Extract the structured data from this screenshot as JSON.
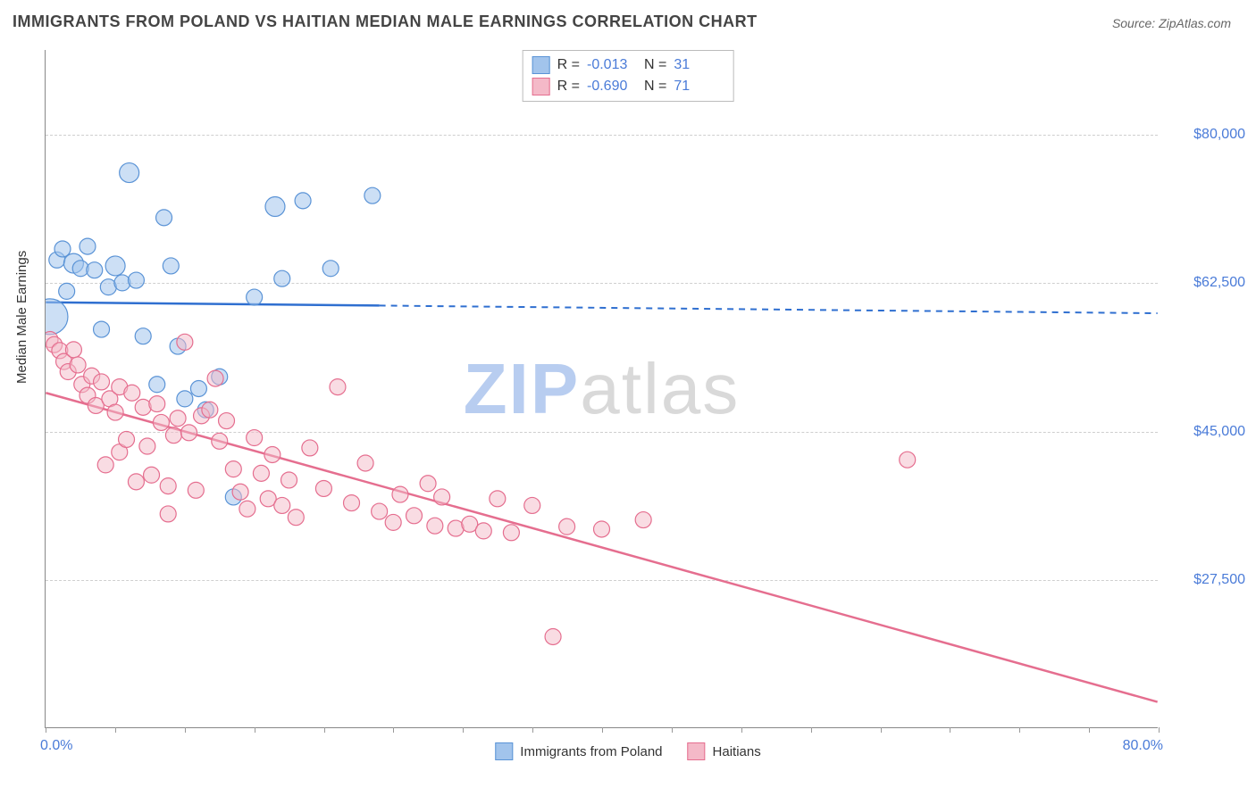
{
  "title": "IMMIGRANTS FROM POLAND VS HAITIAN MEDIAN MALE EARNINGS CORRELATION CHART",
  "source": "Source: ZipAtlas.com",
  "y_axis_label": "Median Male Earnings",
  "watermark": {
    "part1": "ZIP",
    "part2": "atlas"
  },
  "chart": {
    "type": "scatter",
    "xlim": [
      0,
      80
    ],
    "ylim": [
      10000,
      90000
    ],
    "x_tick_positions": [
      0,
      5,
      10,
      15,
      20,
      25,
      30,
      35,
      40,
      45,
      50,
      55,
      60,
      65,
      70,
      75,
      80
    ],
    "x_label_min": "0.0%",
    "x_label_max": "80.0%",
    "y_gridlines": [
      27500,
      45000,
      62500,
      80000
    ],
    "y_tick_labels": [
      "$27,500",
      "$45,000",
      "$62,500",
      "$80,000"
    ],
    "background_color": "#ffffff",
    "grid_color": "#cfcfcf",
    "axis_color": "#888888",
    "tick_label_color": "#4a7bd8",
    "title_fontsize": 18,
    "label_fontsize": 15,
    "tick_fontsize": 16
  },
  "series": [
    {
      "name": "Immigrants from Poland",
      "marker_fill": "#a2c4ec",
      "marker_stroke": "#5a93d6",
      "fill_opacity": 0.55,
      "marker_radius": 9,
      "line_color": "#2f6fd0",
      "line_width": 2.5,
      "R": "-0.013",
      "N": "31",
      "trend": {
        "x1": 0,
        "y1": 60200,
        "x2": 80,
        "y2": 58900,
        "solid_until_x": 24
      },
      "points": [
        {
          "x": 0.3,
          "y": 58500,
          "r": 20
        },
        {
          "x": 0.8,
          "y": 65200,
          "r": 9
        },
        {
          "x": 1.2,
          "y": 66500,
          "r": 9
        },
        {
          "x": 1.5,
          "y": 61500,
          "r": 9
        },
        {
          "x": 2.0,
          "y": 64800,
          "r": 11
        },
        {
          "x": 2.5,
          "y": 64200,
          "r": 9
        },
        {
          "x": 3.0,
          "y": 66800,
          "r": 9
        },
        {
          "x": 3.5,
          "y": 64000,
          "r": 9
        },
        {
          "x": 4.0,
          "y": 57000,
          "r": 9
        },
        {
          "x": 4.5,
          "y": 62000,
          "r": 9
        },
        {
          "x": 5.0,
          "y": 64500,
          "r": 11
        },
        {
          "x": 5.5,
          "y": 62500,
          "r": 9
        },
        {
          "x": 6.0,
          "y": 75500,
          "r": 11
        },
        {
          "x": 6.5,
          "y": 62800,
          "r": 9
        },
        {
          "x": 7.0,
          "y": 56200,
          "r": 9
        },
        {
          "x": 8.0,
          "y": 50500,
          "r": 9
        },
        {
          "x": 8.5,
          "y": 70200,
          "r": 9
        },
        {
          "x": 9.0,
          "y": 64500,
          "r": 9
        },
        {
          "x": 9.5,
          "y": 55000,
          "r": 9
        },
        {
          "x": 10.0,
          "y": 48800,
          "r": 9
        },
        {
          "x": 11.0,
          "y": 50000,
          "r": 9
        },
        {
          "x": 11.5,
          "y": 47500,
          "r": 9
        },
        {
          "x": 12.5,
          "y": 51400,
          "r": 9
        },
        {
          "x": 13.5,
          "y": 37200,
          "r": 9
        },
        {
          "x": 15.0,
          "y": 60800,
          "r": 9
        },
        {
          "x": 16.5,
          "y": 71500,
          "r": 11
        },
        {
          "x": 17.0,
          "y": 63000,
          "r": 9
        },
        {
          "x": 18.5,
          "y": 72200,
          "r": 9
        },
        {
          "x": 20.5,
          "y": 64200,
          "r": 9
        },
        {
          "x": 23.5,
          "y": 72800,
          "r": 9
        }
      ]
    },
    {
      "name": "Haitians",
      "marker_fill": "#f4b9c8",
      "marker_stroke": "#e56e8f",
      "fill_opacity": 0.5,
      "marker_radius": 9,
      "line_color": "#e56e8f",
      "line_width": 2.5,
      "R": "-0.690",
      "N": "71",
      "trend": {
        "x1": 0,
        "y1": 49500,
        "x2": 80,
        "y2": 13000,
        "solid_until_x": 80
      },
      "points": [
        {
          "x": 0.3,
          "y": 55800,
          "r": 9
        },
        {
          "x": 0.6,
          "y": 55200,
          "r": 9
        },
        {
          "x": 1.0,
          "y": 54500,
          "r": 9
        },
        {
          "x": 1.3,
          "y": 53200,
          "r": 9
        },
        {
          "x": 1.6,
          "y": 52000,
          "r": 9
        },
        {
          "x": 2.0,
          "y": 54600,
          "r": 9
        },
        {
          "x": 2.3,
          "y": 52800,
          "r": 9
        },
        {
          "x": 2.6,
          "y": 50500,
          "r": 9
        },
        {
          "x": 3.0,
          "y": 49200,
          "r": 9
        },
        {
          "x": 3.3,
          "y": 51500,
          "r": 9
        },
        {
          "x": 3.6,
          "y": 48000,
          "r": 9
        },
        {
          "x": 4.0,
          "y": 50800,
          "r": 9
        },
        {
          "x": 4.3,
          "y": 41000,
          "r": 9
        },
        {
          "x": 4.6,
          "y": 48800,
          "r": 9
        },
        {
          "x": 5.0,
          "y": 47200,
          "r": 9
        },
        {
          "x": 5.3,
          "y": 50200,
          "r": 9
        },
        {
          "x": 5.3,
          "y": 42500,
          "r": 9
        },
        {
          "x": 5.8,
          "y": 44000,
          "r": 9
        },
        {
          "x": 6.2,
          "y": 49500,
          "r": 9
        },
        {
          "x": 6.5,
          "y": 39000,
          "r": 9
        },
        {
          "x": 7.0,
          "y": 47800,
          "r": 9
        },
        {
          "x": 7.3,
          "y": 43200,
          "r": 9
        },
        {
          "x": 7.6,
          "y": 39800,
          "r": 9
        },
        {
          "x": 8.0,
          "y": 48200,
          "r": 9
        },
        {
          "x": 8.3,
          "y": 46000,
          "r": 9
        },
        {
          "x": 8.8,
          "y": 38500,
          "r": 9
        },
        {
          "x": 8.8,
          "y": 35200,
          "r": 9
        },
        {
          "x": 9.2,
          "y": 44500,
          "r": 9
        },
        {
          "x": 9.5,
          "y": 46500,
          "r": 9
        },
        {
          "x": 10.0,
          "y": 55500,
          "r": 9
        },
        {
          "x": 10.3,
          "y": 44800,
          "r": 9
        },
        {
          "x": 10.8,
          "y": 38000,
          "r": 9
        },
        {
          "x": 11.2,
          "y": 46800,
          "r": 9
        },
        {
          "x": 11.8,
          "y": 47500,
          "r": 9
        },
        {
          "x": 12.2,
          "y": 51200,
          "r": 9
        },
        {
          "x": 12.5,
          "y": 43800,
          "r": 9
        },
        {
          "x": 13.0,
          "y": 46200,
          "r": 9
        },
        {
          "x": 13.5,
          "y": 40500,
          "r": 9
        },
        {
          "x": 14.0,
          "y": 37800,
          "r": 9
        },
        {
          "x": 14.5,
          "y": 35800,
          "r": 9
        },
        {
          "x": 15.0,
          "y": 44200,
          "r": 9
        },
        {
          "x": 15.5,
          "y": 40000,
          "r": 9
        },
        {
          "x": 16.0,
          "y": 37000,
          "r": 9
        },
        {
          "x": 16.3,
          "y": 42200,
          "r": 9
        },
        {
          "x": 17.0,
          "y": 36200,
          "r": 9
        },
        {
          "x": 17.5,
          "y": 39200,
          "r": 9
        },
        {
          "x": 18.0,
          "y": 34800,
          "r": 9
        },
        {
          "x": 19.0,
          "y": 43000,
          "r": 9
        },
        {
          "x": 20.0,
          "y": 38200,
          "r": 9
        },
        {
          "x": 21.0,
          "y": 50200,
          "r": 9
        },
        {
          "x": 22.0,
          "y": 36500,
          "r": 9
        },
        {
          "x": 23.0,
          "y": 41200,
          "r": 9
        },
        {
          "x": 24.0,
          "y": 35500,
          "r": 9
        },
        {
          "x": 25.0,
          "y": 34200,
          "r": 9
        },
        {
          "x": 25.5,
          "y": 37500,
          "r": 9
        },
        {
          "x": 26.5,
          "y": 35000,
          "r": 9
        },
        {
          "x": 27.5,
          "y": 38800,
          "r": 9
        },
        {
          "x": 28.0,
          "y": 33800,
          "r": 9
        },
        {
          "x": 28.5,
          "y": 37200,
          "r": 9
        },
        {
          "x": 29.5,
          "y": 33500,
          "r": 9
        },
        {
          "x": 30.5,
          "y": 34000,
          "r": 9
        },
        {
          "x": 31.5,
          "y": 33200,
          "r": 9
        },
        {
          "x": 32.5,
          "y": 37000,
          "r": 9
        },
        {
          "x": 33.5,
          "y": 33000,
          "r": 9
        },
        {
          "x": 35.0,
          "y": 36200,
          "r": 9
        },
        {
          "x": 36.5,
          "y": 20700,
          "r": 9
        },
        {
          "x": 37.5,
          "y": 33700,
          "r": 9
        },
        {
          "x": 40.0,
          "y": 33400,
          "r": 9
        },
        {
          "x": 43.0,
          "y": 34500,
          "r": 9
        },
        {
          "x": 62.0,
          "y": 41600,
          "r": 9
        }
      ]
    }
  ],
  "legend_bottom": [
    {
      "label": "Immigrants from Poland",
      "fill": "#a2c4ec",
      "stroke": "#5a93d6"
    },
    {
      "label": "Haitians",
      "fill": "#f4b9c8",
      "stroke": "#e56e8f"
    }
  ]
}
